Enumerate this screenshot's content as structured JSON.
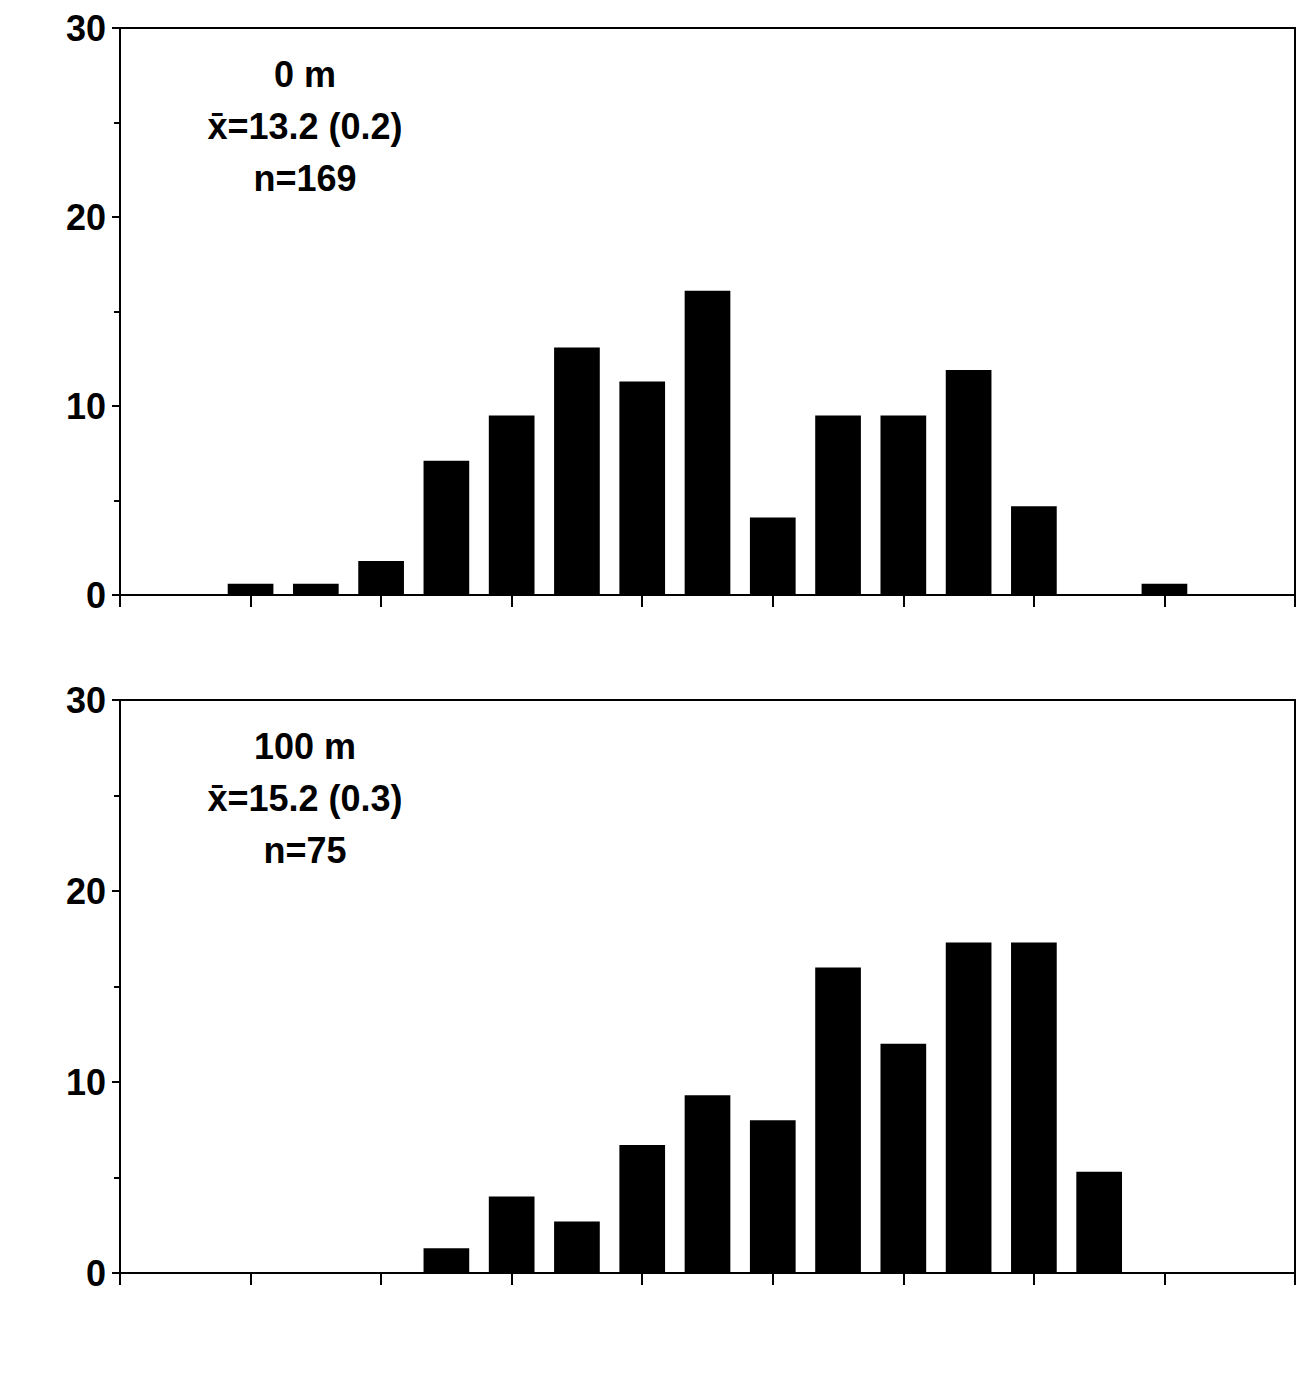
{
  "chart_data": [
    {
      "type": "histogram",
      "annotations": [
        "0 m",
        "x̄=13.2 (0.2)",
        "n=169"
      ],
      "bins": [
        5.5,
        6.5,
        7.5,
        8.5,
        9.5,
        10.5,
        11.5,
        12.5,
        13.5,
        14.5,
        15.5,
        16.5,
        17.5,
        18.5,
        19.5,
        20.5
      ],
      "values": [
        0.6,
        0.6,
        1.8,
        7.1,
        9.5,
        13.1,
        11.3,
        16.1,
        4.1,
        9.5,
        9.5,
        11.9,
        4.7,
        0,
        0.6
      ],
      "color": "#000000",
      "xlim": [
        4,
        22
      ],
      "xticks": [
        4,
        6,
        8,
        10,
        12,
        14,
        16,
        18,
        20,
        22
      ],
      "ylim": [
        0,
        30
      ],
      "yticks": [
        0,
        10,
        20,
        30
      ],
      "grid": false,
      "tick_labels": "y"
    },
    {
      "type": "histogram",
      "annotations": [
        "100 m",
        "x̄=15.2 (0.3)",
        "n=75"
      ],
      "bins": [
        5.5,
        6.5,
        7.5,
        8.5,
        9.5,
        10.5,
        11.5,
        12.5,
        13.5,
        14.5,
        15.5,
        16.5,
        17.5,
        18.5,
        19.5,
        20.5
      ],
      "values": [
        0,
        0,
        0,
        1.3,
        4.0,
        2.7,
        6.7,
        9.3,
        8.0,
        16.0,
        12.0,
        17.3,
        17.3,
        5.3,
        0
      ],
      "color": "#000000",
      "xlim": [
        4,
        22
      ],
      "xticks": [
        4,
        6,
        8,
        10,
        12,
        14,
        16,
        18,
        20,
        22
      ],
      "ylim": [
        0,
        30
      ],
      "yticks": [
        0,
        10,
        20,
        30
      ],
      "grid": false,
      "tick_labels": "y"
    }
  ]
}
